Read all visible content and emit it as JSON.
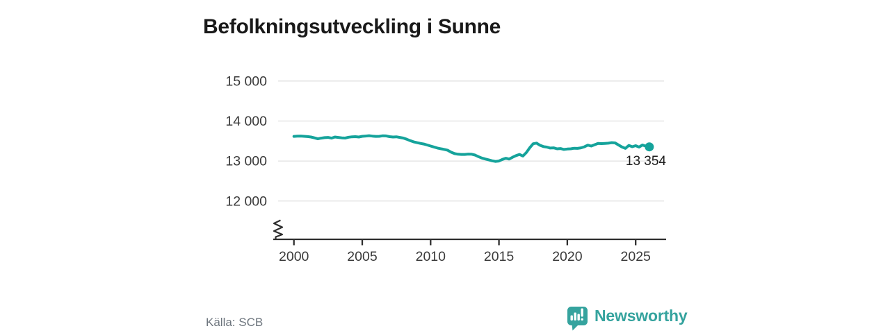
{
  "header": {
    "title": "Befolkningsutveckling i Sunne"
  },
  "footer": {
    "source": "Källa: SCB",
    "brand": "Newsworthy"
  },
  "icons": {
    "brand_icon": "newsworthy-speech-bubble-bar-chart-icon"
  },
  "colors": {
    "line": "#15a39b",
    "brand": "#35a39e",
    "axis": "#2e2e2e",
    "grid": "#e1e1e1",
    "tick_text": "#3a3a3a",
    "end_label_text": "#1c1c1c",
    "title_text": "#191919",
    "source_text": "#6d757d"
  },
  "chart_data": {
    "type": "line",
    "title": "Befolkningsutveckling i Sunne",
    "xlabel": "",
    "ylabel": "",
    "grid": "horizontal",
    "legend": "none",
    "axis_break_on_y": true,
    "xlim": [
      1999.6,
      2027.2
    ],
    "ylim_shown": [
      12000,
      15000
    ],
    "x_ticks": [
      {
        "value": 2000,
        "label": "2000"
      },
      {
        "value": 2005,
        "label": "2005"
      },
      {
        "value": 2010,
        "label": "2010"
      },
      {
        "value": 2015,
        "label": "2015"
      },
      {
        "value": 2020,
        "label": "2020"
      },
      {
        "value": 2025,
        "label": "2025"
      }
    ],
    "y_ticks": [
      {
        "value": 12000,
        "label": "12 000"
      },
      {
        "value": 13000,
        "label": "13 000"
      },
      {
        "value": 14000,
        "label": "14 000"
      },
      {
        "value": 15000,
        "label": "15 000"
      }
    ],
    "end_label": "13 354",
    "end_value": 13354,
    "series": [
      {
        "name": "Befolkning i Sunne",
        "x": [
          2000.0,
          2000.25,
          2000.5,
          2000.75,
          2001.0,
          2001.25,
          2001.5,
          2001.75,
          2002.0,
          2002.25,
          2002.5,
          2002.75,
          2003.0,
          2003.25,
          2003.5,
          2003.75,
          2004.0,
          2004.25,
          2004.5,
          2004.75,
          2005.0,
          2005.25,
          2005.5,
          2005.75,
          2006.0,
          2006.25,
          2006.5,
          2006.75,
          2007.0,
          2007.25,
          2007.5,
          2007.75,
          2008.0,
          2008.25,
          2008.5,
          2008.75,
          2009.0,
          2009.25,
          2009.5,
          2009.75,
          2010.0,
          2010.25,
          2010.5,
          2010.75,
          2011.0,
          2011.25,
          2011.5,
          2011.75,
          2012.0,
          2012.25,
          2012.5,
          2012.75,
          2013.0,
          2013.25,
          2013.5,
          2013.75,
          2014.0,
          2014.25,
          2014.5,
          2014.75,
          2015.0,
          2015.25,
          2015.5,
          2015.75,
          2016.0,
          2016.25,
          2016.5,
          2016.75,
          2017.0,
          2017.25,
          2017.5,
          2017.75,
          2018.0,
          2018.25,
          2018.5,
          2018.75,
          2019.0,
          2019.25,
          2019.5,
          2019.75,
          2020.0,
          2020.25,
          2020.5,
          2020.75,
          2021.0,
          2021.25,
          2021.5,
          2021.75,
          2022.0,
          2022.25,
          2022.5,
          2022.75,
          2023.0,
          2023.25,
          2023.5,
          2023.75,
          2024.0,
          2024.25,
          2024.5,
          2024.75,
          2025.0,
          2025.25,
          2025.5,
          2025.75,
          2026.0
        ],
        "y": [
          13615,
          13622,
          13625,
          13618,
          13610,
          13600,
          13580,
          13555,
          13572,
          13585,
          13590,
          13572,
          13600,
          13590,
          13580,
          13574,
          13595,
          13605,
          13608,
          13600,
          13618,
          13625,
          13633,
          13622,
          13615,
          13618,
          13632,
          13628,
          13608,
          13600,
          13606,
          13590,
          13575,
          13545,
          13510,
          13480,
          13460,
          13440,
          13425,
          13400,
          13375,
          13350,
          13325,
          13307,
          13290,
          13268,
          13220,
          13185,
          13170,
          13165,
          13165,
          13173,
          13170,
          13150,
          13110,
          13075,
          13050,
          13030,
          13005,
          12990,
          13000,
          13040,
          13070,
          13048,
          13095,
          13135,
          13165,
          13125,
          13210,
          13330,
          13432,
          13448,
          13393,
          13360,
          13348,
          13325,
          13330,
          13305,
          13312,
          13290,
          13300,
          13305,
          13320,
          13315,
          13330,
          13355,
          13398,
          13375,
          13408,
          13440,
          13435,
          13440,
          13445,
          13460,
          13452,
          13400,
          13350,
          13315,
          13390,
          13357,
          13383,
          13348,
          13400,
          13370,
          13354
        ]
      }
    ]
  }
}
